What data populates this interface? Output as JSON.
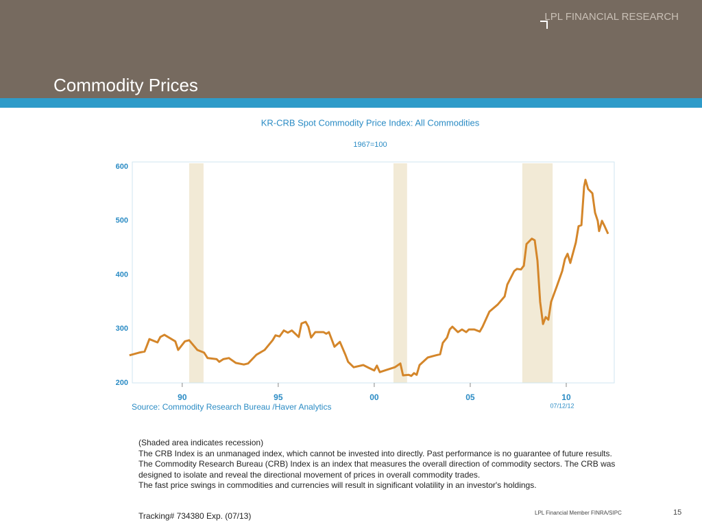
{
  "header": {
    "title": "Commodity Prices",
    "brand": "LPL FINANCIAL RESEARCH"
  },
  "chart_data": {
    "type": "line",
    "title": "KR-CRB Spot Commodity Price Index: All Commodities",
    "subtitle": "1967=100",
    "color": "#d4862a",
    "x": [
      1987.25,
      1987.75,
      1988.04,
      1988.14,
      1988.29,
      1988.71,
      1988.86,
      1989.07,
      1989.64,
      1989.79,
      1990.14,
      1990.36,
      1990.79,
      1991.14,
      1991.32,
      1991.79,
      1991.93,
      1992.14,
      1992.43,
      1992.79,
      1993.21,
      1993.43,
      1993.86,
      1994.29,
      1994.71,
      1994.86,
      1995.07,
      1995.29,
      1995.5,
      1995.71,
      1996.07,
      1996.21,
      1996.43,
      1996.57,
      1996.71,
      1996.93,
      1997.36,
      1997.5,
      1997.64,
      1997.79,
      1997.93,
      1998.21,
      1998.5,
      1998.64,
      1998.93,
      1999.43,
      1999.71,
      2000.0,
      2000.14,
      2000.29,
      2000.64,
      2001.07,
      2001.36,
      2001.5,
      2001.79,
      2001.93,
      2002.07,
      2002.21,
      2002.36,
      2002.79,
      2003.21,
      2003.43,
      2003.57,
      2003.79,
      2003.93,
      2004.07,
      2004.36,
      2004.57,
      2004.79,
      2004.93,
      2005.21,
      2005.5,
      2005.64,
      2006.0,
      2006.43,
      2006.79,
      2006.93,
      2007.29,
      2007.43,
      2007.64,
      2007.79,
      2007.93,
      2008.21,
      2008.36,
      2008.5,
      2008.64,
      2008.79,
      2008.93,
      2009.07,
      2009.21,
      2009.5,
      2009.79,
      2009.93,
      2010.07,
      2010.21,
      2010.5,
      2010.64,
      2010.79,
      2010.93,
      2011.0,
      2011.14,
      2011.36,
      2011.5,
      2011.64,
      2011.71,
      2011.86,
      2012.0,
      2012.18
    ],
    "values": [
      251,
      256,
      258,
      267,
      281,
      275,
      285,
      289,
      277,
      261,
      277,
      279,
      261,
      256,
      246,
      244,
      239,
      244,
      246,
      237,
      234,
      236,
      252,
      261,
      279,
      288,
      286,
      297,
      293,
      297,
      285,
      310,
      313,
      304,
      284,
      294,
      294,
      291,
      294,
      280,
      267,
      276,
      252,
      239,
      229,
      233,
      228,
      223,
      232,
      220,
      224,
      229,
      236,
      214,
      215,
      213,
      218,
      215,
      233,
      247,
      251,
      253,
      274,
      284,
      299,
      304,
      294,
      299,
      294,
      299,
      299,
      295,
      304,
      332,
      345,
      360,
      382,
      407,
      411,
      410,
      417,
      457,
      467,
      464,
      426,
      350,
      309,
      322,
      317,
      350,
      378,
      407,
      429,
      439,
      422,
      460,
      490,
      492,
      563,
      576,
      559,
      551,
      515,
      500,
      481,
      500,
      490,
      476
    ],
    "recessions": [
      [
        1990.36,
        1991.11
      ],
      [
        2001.0,
        2001.71
      ],
      [
        2007.71,
        2009.29
      ]
    ],
    "xlim": [
      1987.4,
      2012.5
    ],
    "xticks": [
      {
        "value": 1990,
        "label": "90"
      },
      {
        "value": 1995,
        "label": "95"
      },
      {
        "value": 2000,
        "label": "00"
      },
      {
        "value": 2005,
        "label": "05"
      },
      {
        "value": 2010,
        "label": "10"
      }
    ],
    "ylim": [
      200,
      609
    ],
    "yticks": [
      200,
      300,
      400,
      500,
      600
    ],
    "source": "Source:  Commodity Research Bureau /Haver Analytics",
    "annotation": "07/12/12"
  },
  "notes": [
    "(Shaded area indicates recession)",
    "The CRB Index is an unmanaged index, which cannot be invested into directly. Past performance is no guarantee of future results.",
    "The Commodity Research Bureau (CRB) Index is an index that measures the overall direction of commodity sectors. The CRB was designed to isolate and reveal the directional movement of prices in overall commodity trades.",
    "The fast price swings in commodities and currencies will result in significant volatility in an investor's holdings."
  ],
  "tracking": "Tracking# 734380 Exp. (07/13)",
  "footer": {
    "member": "LPL Financial Member FINRA/SIPC",
    "page": "15"
  }
}
